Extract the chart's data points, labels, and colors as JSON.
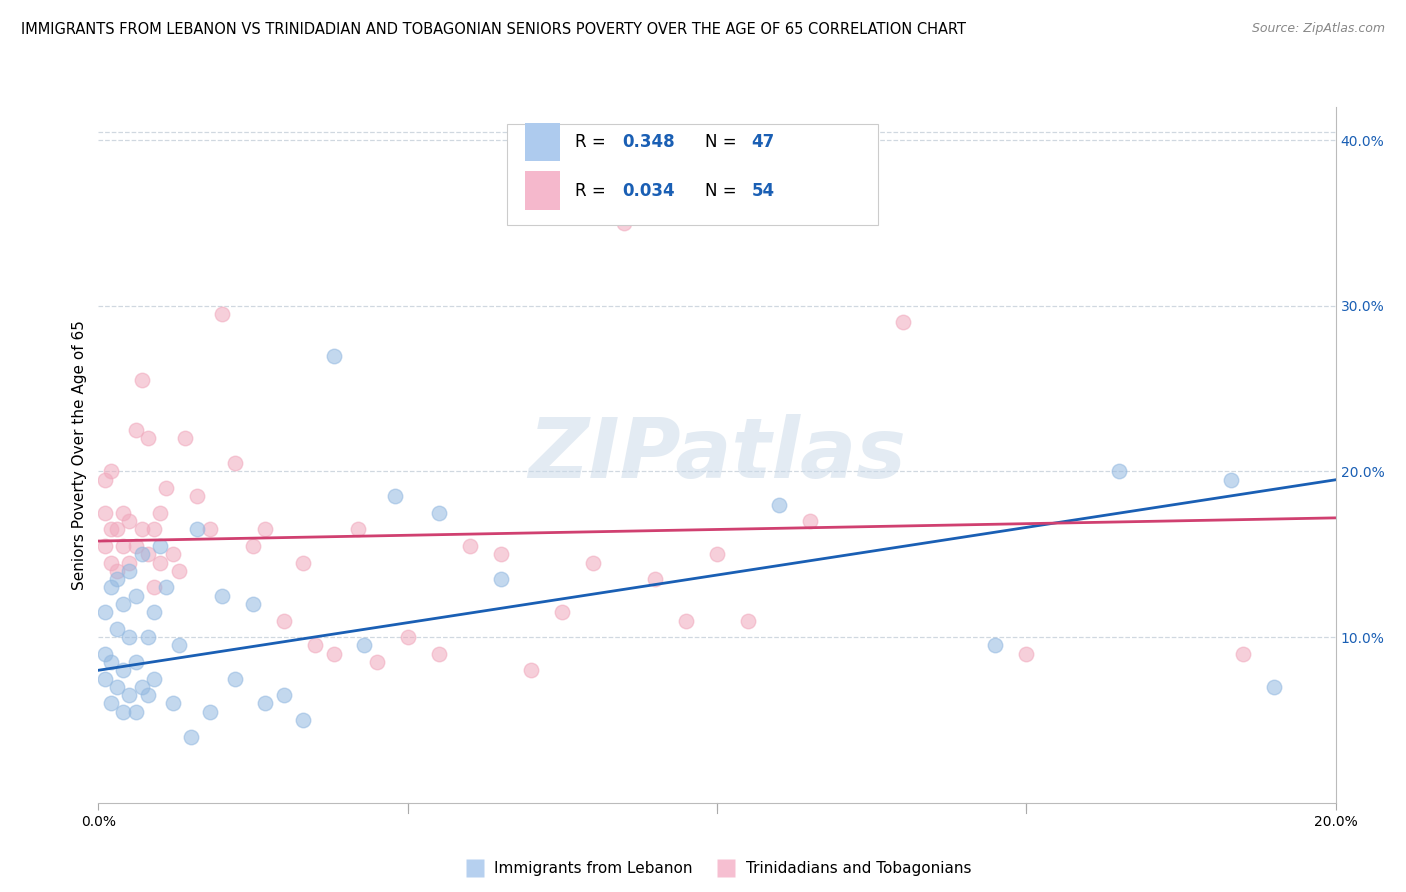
{
  "title": "IMMIGRANTS FROM LEBANON VS TRINIDADIAN AND TOBAGONIAN SENIORS POVERTY OVER THE AGE OF 65 CORRELATION CHART",
  "source": "Source: ZipAtlas.com",
  "ylabel": "Seniors Poverty Over the Age of 65",
  "xlim": [
    0.0,
    0.2
  ],
  "ylim": [
    0.0,
    0.42
  ],
  "ytick_vals": [
    0.1,
    0.2,
    0.3,
    0.4
  ],
  "ytick_labels": [
    "10.0%",
    "20.0%",
    "30.0%",
    "40.0%"
  ],
  "xtick_vals": [
    0.0,
    0.05,
    0.1,
    0.15,
    0.2
  ],
  "xtick_labels": [
    "0.0%",
    "",
    "",
    "",
    "20.0%"
  ],
  "legend_R1": "0.348",
  "legend_N1": "47",
  "legend_R2": "0.034",
  "legend_N2": "54",
  "legend_label1": "Immigrants from Lebanon",
  "legend_label2": "Trinidadians and Tobagonians",
  "blue_scatter_x": [
    0.001,
    0.001,
    0.001,
    0.002,
    0.002,
    0.002,
    0.003,
    0.003,
    0.003,
    0.004,
    0.004,
    0.004,
    0.005,
    0.005,
    0.005,
    0.006,
    0.006,
    0.006,
    0.007,
    0.007,
    0.008,
    0.008,
    0.009,
    0.009,
    0.01,
    0.011,
    0.012,
    0.013,
    0.015,
    0.016,
    0.018,
    0.02,
    0.022,
    0.025,
    0.027,
    0.03,
    0.033,
    0.038,
    0.043,
    0.048,
    0.055,
    0.065,
    0.11,
    0.145,
    0.165,
    0.183,
    0.19
  ],
  "blue_scatter_y": [
    0.075,
    0.09,
    0.115,
    0.06,
    0.085,
    0.13,
    0.07,
    0.105,
    0.135,
    0.055,
    0.08,
    0.12,
    0.065,
    0.1,
    0.14,
    0.055,
    0.085,
    0.125,
    0.07,
    0.15,
    0.065,
    0.1,
    0.075,
    0.115,
    0.155,
    0.13,
    0.06,
    0.095,
    0.04,
    0.165,
    0.055,
    0.125,
    0.075,
    0.12,
    0.06,
    0.065,
    0.05,
    0.27,
    0.095,
    0.185,
    0.175,
    0.135,
    0.18,
    0.095,
    0.2,
    0.195,
    0.07
  ],
  "pink_scatter_x": [
    0.001,
    0.001,
    0.001,
    0.002,
    0.002,
    0.002,
    0.003,
    0.003,
    0.004,
    0.004,
    0.005,
    0.005,
    0.006,
    0.006,
    0.007,
    0.007,
    0.008,
    0.008,
    0.009,
    0.009,
    0.01,
    0.01,
    0.011,
    0.012,
    0.013,
    0.014,
    0.016,
    0.018,
    0.02,
    0.022,
    0.025,
    0.027,
    0.03,
    0.033,
    0.035,
    0.038,
    0.042,
    0.045,
    0.05,
    0.055,
    0.06,
    0.065,
    0.07,
    0.075,
    0.08,
    0.085,
    0.09,
    0.095,
    0.1,
    0.105,
    0.115,
    0.13,
    0.15,
    0.185
  ],
  "pink_scatter_y": [
    0.155,
    0.175,
    0.195,
    0.145,
    0.165,
    0.2,
    0.14,
    0.165,
    0.155,
    0.175,
    0.145,
    0.17,
    0.155,
    0.225,
    0.165,
    0.255,
    0.15,
    0.22,
    0.13,
    0.165,
    0.145,
    0.175,
    0.19,
    0.15,
    0.14,
    0.22,
    0.185,
    0.165,
    0.295,
    0.205,
    0.155,
    0.165,
    0.11,
    0.145,
    0.095,
    0.09,
    0.165,
    0.085,
    0.1,
    0.09,
    0.155,
    0.15,
    0.08,
    0.115,
    0.145,
    0.35,
    0.135,
    0.11,
    0.15,
    0.11,
    0.17,
    0.29,
    0.09,
    0.09
  ],
  "blue_line_x": [
    0.0,
    0.2
  ],
  "blue_line_y": [
    0.08,
    0.195
  ],
  "pink_line_x": [
    0.0,
    0.2
  ],
  "pink_line_y": [
    0.158,
    0.172
  ],
  "blue_dot_color": "#92b8e0",
  "pink_dot_color": "#f0a8bc",
  "blue_line_color": "#1a5fb4",
  "pink_line_color": "#d04070",
  "blue_legend_fill": "#aecbee",
  "pink_legend_fill": "#f5b8cc",
  "watermark_color": "#c8d8e8",
  "background_color": "#ffffff",
  "grid_color": "#d0d8e0",
  "title_fontsize": 10.5,
  "source_fontsize": 9,
  "axis_label_fontsize": 11,
  "tick_fontsize": 10,
  "legend_fontsize": 12,
  "marker_size": 110,
  "line_width": 2.0
}
